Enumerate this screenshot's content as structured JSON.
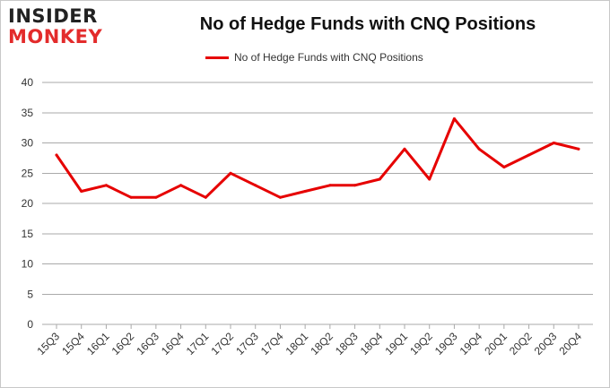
{
  "logo": {
    "line1": "INSIDER",
    "line2": "MONKEY"
  },
  "chart_data": {
    "type": "line",
    "title": "No of Hedge Funds with CNQ Positions",
    "categories": [
      "15Q3",
      "15Q4",
      "16Q1",
      "16Q2",
      "16Q3",
      "16Q4",
      "17Q1",
      "17Q2",
      "17Q3",
      "17Q4",
      "18Q1",
      "18Q2",
      "18Q3",
      "18Q4",
      "19Q1",
      "19Q2",
      "19Q3",
      "19Q4",
      "20Q1",
      "20Q2",
      "20Q3",
      "20Q4"
    ],
    "series": [
      {
        "name": "No of Hedge Funds with CNQ Positions",
        "values": [
          28,
          22,
          23,
          21,
          21,
          23,
          21,
          25,
          23,
          21,
          22,
          23,
          23,
          24,
          29,
          24,
          34,
          29,
          26,
          28,
          30,
          29
        ],
        "color": "#e60000"
      }
    ],
    "yticks": [
      0,
      5,
      10,
      15,
      20,
      25,
      30,
      35,
      40
    ],
    "ylim": [
      0,
      40
    ],
    "grid": true,
    "legend_position": "top-center",
    "gridline_color": "#aaaaaa"
  }
}
